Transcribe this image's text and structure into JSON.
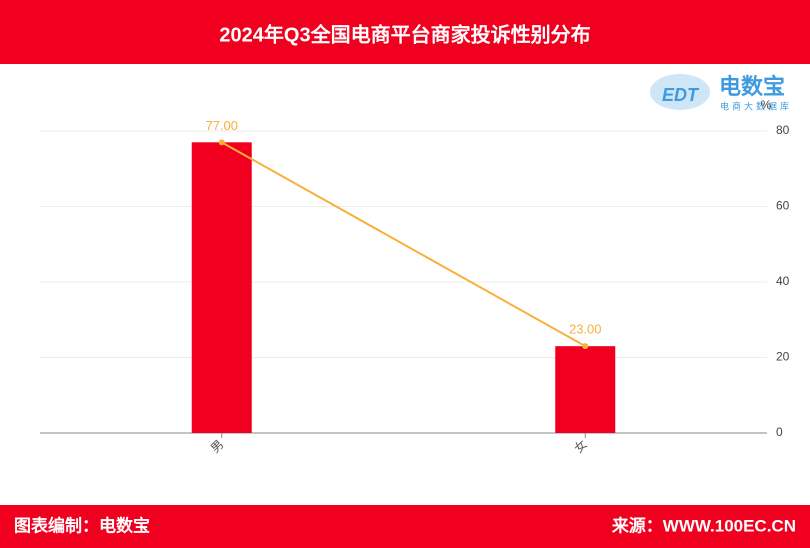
{
  "chart_data": {
    "type": "bar",
    "title": "2024年Q3全国电商平台商家投诉性别分布",
    "categories": [
      "男",
      "女"
    ],
    "series": [
      {
        "type": "bar",
        "color": "#f0001e",
        "values": [
          77,
          23
        ]
      },
      {
        "type": "line",
        "color": "#f8b03a",
        "values": [
          77,
          23
        ],
        "value_labels": [
          "77.00",
          "23.00"
        ]
      }
    ],
    "ylim": [
      0,
      80
    ],
    "yticks": [
      0,
      20,
      40,
      60,
      80
    ],
    "y_unit": "%",
    "grid": true,
    "logo": {
      "mark": "EDT",
      "name": "电数宝",
      "tagline": "电商大数据库"
    },
    "footer": {
      "left": "图表编制：电数宝",
      "right": "来源：WWW.100EC.CN"
    }
  }
}
